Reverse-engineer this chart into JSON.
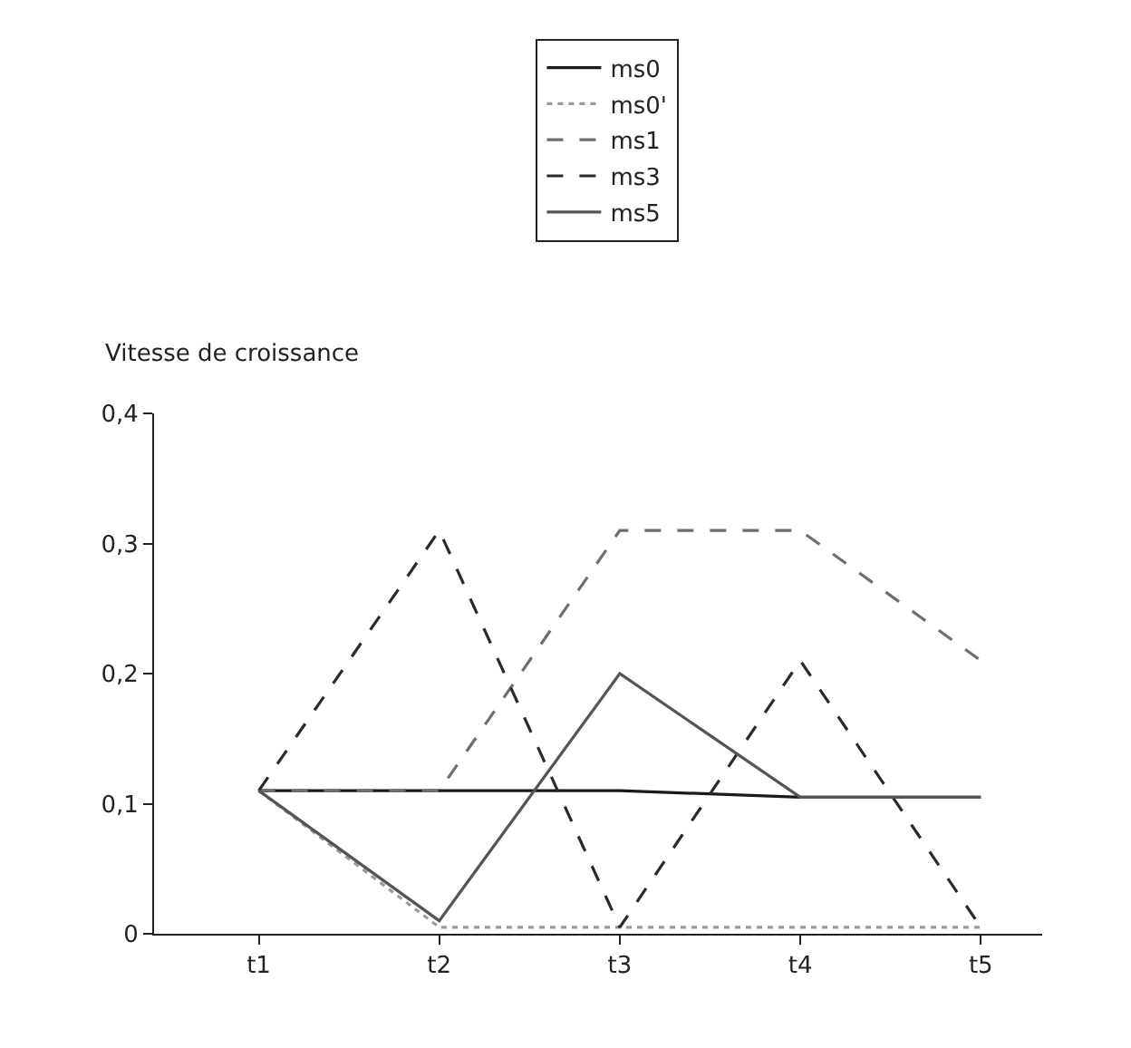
{
  "chart_data": {
    "type": "line",
    "ylabel": "Vitesse de croissance",
    "categories": [
      "t1",
      "t2",
      "t3",
      "t4",
      "t5"
    ],
    "series": [
      {
        "name": "ms0",
        "color": "#1a1a1a",
        "line_style": "solid",
        "values": [
          0.11,
          0.11,
          0.11,
          0.105,
          0.105
        ]
      },
      {
        "name": "ms0'",
        "color": "#9a9a9a",
        "line_style": "dotted",
        "values": [
          0.11,
          0.005,
          0.005,
          0.005,
          0.005
        ]
      },
      {
        "name": "ms1",
        "color": "#6e6e6e",
        "line_style": "dashed",
        "values": [
          0.11,
          0.11,
          0.31,
          0.31,
          0.21
        ]
      },
      {
        "name": "ms3",
        "color": "#2a2a2a",
        "line_style": "dashed",
        "values": [
          0.11,
          0.31,
          0.005,
          0.21,
          0.005
        ]
      },
      {
        "name": "ms5",
        "color": "#555555",
        "line_style": "solid",
        "values": [
          0.11,
          0.01,
          0.2,
          0.105,
          0.105
        ]
      }
    ],
    "ylim": [
      0,
      0.4
    ],
    "yticks": [
      0,
      {
        "value": 0.1,
        "label": "0,1"
      },
      {
        "value": 0.2,
        "label": "0,2"
      },
      {
        "value": 0.3,
        "label": "0,3"
      },
      {
        "value": 0.4,
        "label": "0,4"
      }
    ],
    "legend": "top",
    "marker": "none"
  }
}
